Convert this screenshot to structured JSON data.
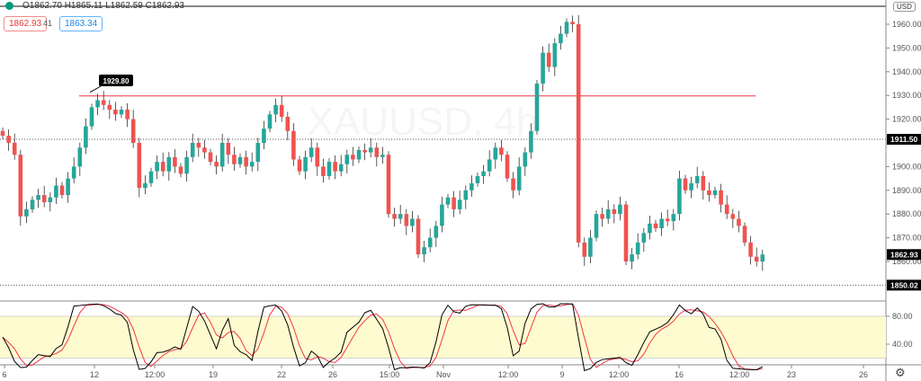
{
  "header": {
    "ohlc": "O1862.70 H1865.11 L1862.59 C1862.93",
    "bid": "1862.93",
    "spread": "41",
    "ask": "1863.34",
    "currency": "USD"
  },
  "chart_data": {
    "type": "candlestick",
    "symbol_watermark": "XAUUSD, 4h",
    "ylim": [
      1846,
      1968
    ],
    "y_ticks": [
      "1960.00",
      "1950.00",
      "1940.00",
      "1930.00",
      "1920.00",
      "1900.00",
      "1890.00",
      "1880.00",
      "1870.00",
      "1860.00"
    ],
    "x_ticks": [
      "6",
      "12",
      "12:00",
      "19",
      "22",
      "26",
      "15:00",
      "Nov",
      "12:00",
      "9",
      "12:00",
      "16",
      "12:00",
      "23",
      "26"
    ],
    "closes": [
      1913,
      1910,
      1905,
      1879,
      1882,
      1886,
      1888,
      1885,
      1887,
      1892,
      1888,
      1895,
      1900,
      1908,
      1917,
      1925,
      1928,
      1926,
      1924,
      1922,
      1924,
      1920,
      1910,
      1891,
      1893,
      1898,
      1902,
      1898,
      1904,
      1900,
      1897,
      1904,
      1910,
      1908,
      1906,
      1902,
      1900,
      1910,
      1905,
      1901,
      1904,
      1900,
      1902,
      1910,
      1916,
      1922,
      1926,
      1921,
      1915,
      1903,
      1898,
      1904,
      1908,
      1900,
      1896,
      1902,
      1898,
      1901,
      1905,
      1903,
      1907,
      1906,
      1908,
      1904,
      1905,
      1880,
      1878,
      1880,
      1875,
      1878,
      1863,
      1866,
      1870,
      1875,
      1884,
      1887,
      1882,
      1886,
      1890,
      1893,
      1896,
      1898,
      1903,
      1908,
      1905,
      1895,
      1890,
      1900,
      1906,
      1915,
      1935,
      1948,
      1942,
      1952,
      1956,
      1961,
      1960,
      1868,
      1862,
      1870,
      1880,
      1878,
      1882,
      1880,
      1884,
      1860,
      1863,
      1868,
      1872,
      1876,
      1874,
      1878,
      1877,
      1880,
      1895,
      1890,
      1893,
      1896,
      1890,
      1888,
      1890,
      1884,
      1880,
      1878,
      1875,
      1868,
      1862,
      1860,
      1862.93
    ],
    "horizontal_line": {
      "price": 1929.8,
      "label": "1929.80",
      "color": "#f23645"
    },
    "price_labels": [
      {
        "value": "1911.50"
      },
      {
        "value": "1862.93"
      },
      {
        "value": "1850.02"
      }
    ],
    "up_color": "#26a69a",
    "down_color": "#ef5350",
    "indicator": {
      "type": "stochastic",
      "ylim": [
        0,
        100
      ],
      "y_ticks": [
        "80.00",
        "40.00"
      ],
      "band": [
        20,
        80
      ],
      "band_color": "#fffbd0",
      "k_color": "#000000",
      "d_color": "#f23645"
    }
  }
}
